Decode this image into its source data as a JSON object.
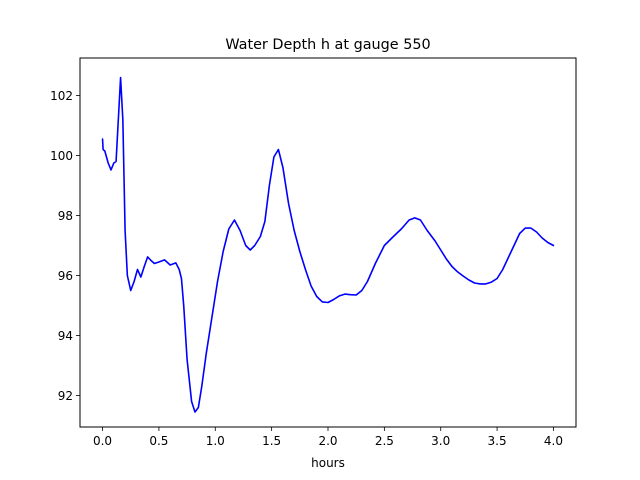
{
  "chart_data": {
    "type": "line",
    "title": "Water Depth h at gauge 550",
    "xlabel": "hours",
    "ylabel": "",
    "xlim": [
      -0.2,
      4.2
    ],
    "ylim": [
      90.95,
      103.25
    ],
    "xticks": [
      "0.0",
      "0.5",
      "1.0",
      "1.5",
      "2.0",
      "2.5",
      "3.0",
      "3.5",
      "4.0"
    ],
    "yticks": [
      "92",
      "94",
      "96",
      "98",
      "100",
      "102"
    ],
    "grid": false,
    "legend": "none",
    "series": [
      {
        "color": "#0000ff",
        "x": [
          0.0,
          0.005,
          0.02,
          0.05,
          0.075,
          0.1,
          0.12,
          0.14,
          0.16,
          0.18,
          0.2,
          0.22,
          0.25,
          0.28,
          0.31,
          0.34,
          0.37,
          0.4,
          0.43,
          0.46,
          0.5,
          0.55,
          0.6,
          0.65,
          0.68,
          0.7,
          0.72,
          0.75,
          0.79,
          0.82,
          0.85,
          0.88,
          0.92,
          0.97,
          1.02,
          1.07,
          1.12,
          1.17,
          1.22,
          1.27,
          1.31,
          1.35,
          1.4,
          1.44,
          1.48,
          1.52,
          1.56,
          1.6,
          1.65,
          1.7,
          1.75,
          1.8,
          1.85,
          1.9,
          1.95,
          2.0,
          2.05,
          2.1,
          2.15,
          2.2,
          2.25,
          2.3,
          2.35,
          2.42,
          2.5,
          2.58,
          2.65,
          2.72,
          2.77,
          2.82,
          2.88,
          2.95,
          3.0,
          3.05,
          3.1,
          3.15,
          3.2,
          3.25,
          3.3,
          3.35,
          3.4,
          3.45,
          3.5,
          3.55,
          3.6,
          3.65,
          3.7,
          3.75,
          3.8,
          3.85,
          3.9,
          3.95,
          4.0
        ],
        "values": [
          100.55,
          100.2,
          100.15,
          99.75,
          99.52,
          99.75,
          99.8,
          101.2,
          102.6,
          101.2,
          97.5,
          96.0,
          95.5,
          95.8,
          96.2,
          95.95,
          96.3,
          96.62,
          96.5,
          96.4,
          96.45,
          96.52,
          96.35,
          96.42,
          96.2,
          95.9,
          95.0,
          93.2,
          91.8,
          91.45,
          91.6,
          92.3,
          93.4,
          94.6,
          95.8,
          96.8,
          97.55,
          97.85,
          97.5,
          97.0,
          96.85,
          97.0,
          97.3,
          97.8,
          99.0,
          99.95,
          100.2,
          99.6,
          98.4,
          97.5,
          96.8,
          96.2,
          95.65,
          95.3,
          95.12,
          95.1,
          95.2,
          95.32,
          95.38,
          95.36,
          95.35,
          95.5,
          95.8,
          96.4,
          97.0,
          97.3,
          97.55,
          97.85,
          97.92,
          97.85,
          97.5,
          97.15,
          96.85,
          96.55,
          96.3,
          96.12,
          95.98,
          95.85,
          95.75,
          95.72,
          95.72,
          95.78,
          95.9,
          96.2,
          96.6,
          97.0,
          97.4,
          97.58,
          97.58,
          97.45,
          97.25,
          97.1,
          97.0
        ]
      }
    ]
  }
}
